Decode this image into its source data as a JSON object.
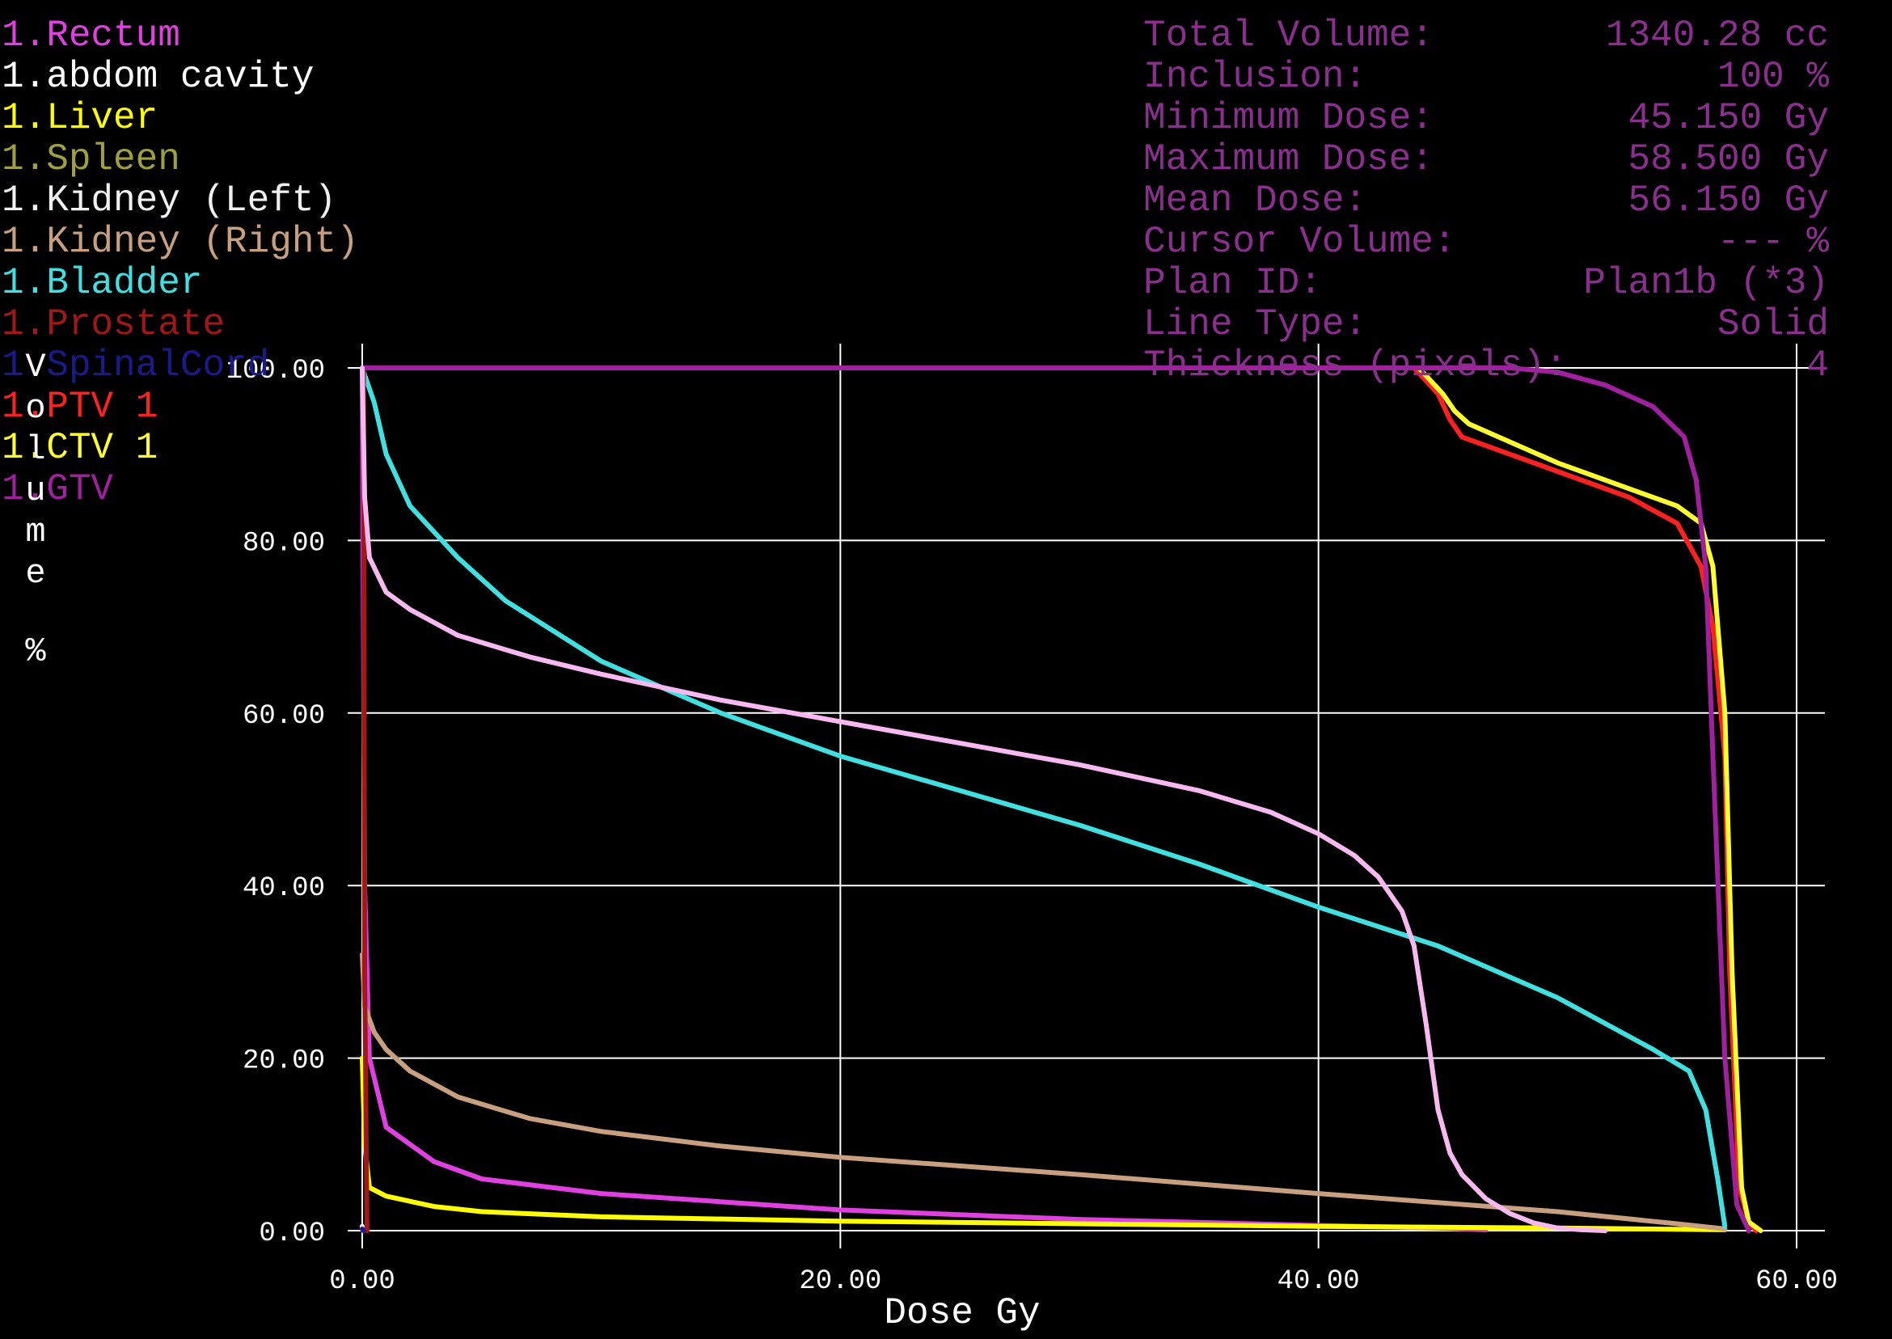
{
  "colors": {
    "background": "#000000",
    "grid": "#ffffff",
    "stats": "#8b2f8f"
  },
  "stats": [
    {
      "label": "Total Volume:",
      "value": "1340.28 cc"
    },
    {
      "label": "Inclusion:",
      "value": "100 %"
    },
    {
      "label": "Minimum Dose:",
      "value": "45.150 Gy"
    },
    {
      "label": "Maximum Dose:",
      "value": "58.500 Gy"
    },
    {
      "label": "Mean Dose:",
      "value": "56.150 Gy"
    },
    {
      "label": "Cursor Volume:",
      "value": "--- %"
    },
    {
      "label": "Plan ID:",
      "value": "Plan1b (*3)"
    },
    {
      "label": "Line Type:",
      "value": "Solid"
    },
    {
      "label": "Thickness (pixels):",
      "value": "4"
    }
  ],
  "chart_data": {
    "type": "line",
    "xlabel": "Dose Gy",
    "ylabel": "Volume %",
    "xlim": [
      0,
      60
    ],
    "ylim": [
      0,
      100
    ],
    "xticks": [
      "0.00",
      "20.00",
      "40.00",
      "60.00"
    ],
    "yticks": [
      "0.00",
      "20.00",
      "40.00",
      "60.00",
      "80.00",
      "100.00"
    ],
    "grid": true,
    "legend_position": "top-left",
    "series": [
      {
        "name": "1.Rectum",
        "color": "#e040e0",
        "x": [
          0,
          0.1,
          0.3,
          1,
          3,
          5,
          10,
          20,
          30,
          40,
          45,
          47
        ],
        "y": [
          100,
          40,
          20,
          12,
          8,
          6,
          4.3,
          2.4,
          1.3,
          0.6,
          0.3,
          0.1
        ]
      },
      {
        "name": "1.abdom cavity",
        "color": "#ffffff",
        "x": [
          0,
          0.05
        ],
        "y": [
          0.5,
          0
        ]
      },
      {
        "name": "1.Liver",
        "color": "#ffff00",
        "x": [
          0,
          0.1,
          0.3,
          1,
          3,
          5,
          10,
          20,
          30,
          40,
          50,
          57
        ],
        "y": [
          20,
          10,
          5,
          4,
          2.8,
          2.2,
          1.6,
          1.1,
          0.8,
          0.5,
          0.3,
          0.1
        ]
      },
      {
        "name": "1.Spleen",
        "color": "#a0a040",
        "x": [
          0,
          0.05
        ],
        "y": [
          0.3,
          0
        ]
      },
      {
        "name": "1.Kidney (Left)",
        "color": "#f0f0f0",
        "x": [
          0,
          0.05
        ],
        "y": [
          0.3,
          0
        ]
      },
      {
        "name": "1.Kidney (Right)",
        "color": "#c8a080",
        "x": [
          0,
          0.1,
          0.5,
          1,
          2,
          4,
          7,
          10,
          15,
          20,
          30,
          40,
          50,
          55,
          57
        ],
        "y": [
          32,
          26,
          23,
          21,
          18.5,
          15.5,
          13,
          11.5,
          9.8,
          8.5,
          6.5,
          4.3,
          2.2,
          0.8,
          0.2
        ]
      },
      {
        "name": "1.Bladder",
        "color": "#40e0e0",
        "x": [
          0,
          0.5,
          1,
          2,
          4,
          6,
          10,
          15,
          20,
          25,
          30,
          35,
          40,
          45,
          50,
          54,
          55.5,
          56.2,
          56.7,
          57
        ],
        "y": [
          100,
          96,
          90,
          84,
          78,
          73,
          66,
          60,
          55,
          51,
          47,
          42.5,
          37.5,
          33,
          27,
          21,
          18.5,
          14,
          6,
          0.5
        ]
      },
      {
        "name": "1.Prostate",
        "color": "#a01818",
        "x": [
          0.05,
          0.1,
          0.2
        ],
        "y": [
          100,
          30,
          0
        ]
      },
      {
        "name": "1.SpinalCord",
        "color": "#1a1a8c",
        "x": [
          0,
          0.05
        ],
        "y": [
          0.2,
          0
        ]
      },
      {
        "name": "1.PTV 1",
        "color": "#ff2020",
        "x": [
          0,
          44,
          45,
          45.5,
          46,
          50,
          53,
          55,
          56,
          56.5,
          57,
          57.2,
          57.6,
          58,
          58.3
        ],
        "y": [
          100,
          100,
          97,
          94,
          92,
          88,
          85,
          82,
          77,
          70,
          55,
          30,
          5,
          1,
          0
        ]
      },
      {
        "name": "1.CTV 1",
        "color": "#ffff30",
        "x": [
          0,
          44.2,
          45.2,
          45.7,
          46.3,
          50,
          53,
          55,
          56,
          56.5,
          57,
          57.3,
          57.7,
          58,
          58.5
        ],
        "y": [
          100,
          100,
          97,
          95,
          93.5,
          89,
          86,
          84,
          82,
          77,
          60,
          30,
          5,
          1,
          0
        ]
      },
      {
        "name": "1.GTV",
        "color": "#a020a0",
        "x": [
          0,
          48,
          50,
          52,
          54,
          55.3,
          55.8,
          56.2,
          56.5,
          57,
          57.5,
          58
        ],
        "y": [
          100,
          100,
          99.5,
          98,
          95.5,
          92,
          87,
          77,
          55,
          20,
          3,
          0
        ]
      },
      {
        "name": "",
        "color": "#f8b8f0",
        "x": [
          0,
          0.1,
          0.3,
          1,
          2,
          4,
          7,
          10,
          15,
          20,
          25,
          30,
          35,
          38,
          40,
          41.5,
          42.5,
          43.5,
          44,
          44.5,
          45,
          45.5,
          46,
          47,
          48,
          49,
          50,
          51,
          52
        ],
        "y": [
          100,
          85,
          78,
          74,
          72,
          69,
          66.5,
          64.5,
          61.5,
          59,
          56.5,
          54,
          51,
          48.5,
          46,
          43.5,
          41,
          37,
          33,
          24,
          14,
          9,
          6.5,
          3.7,
          2,
          0.9,
          0.3,
          0.1,
          0
        ]
      }
    ]
  }
}
